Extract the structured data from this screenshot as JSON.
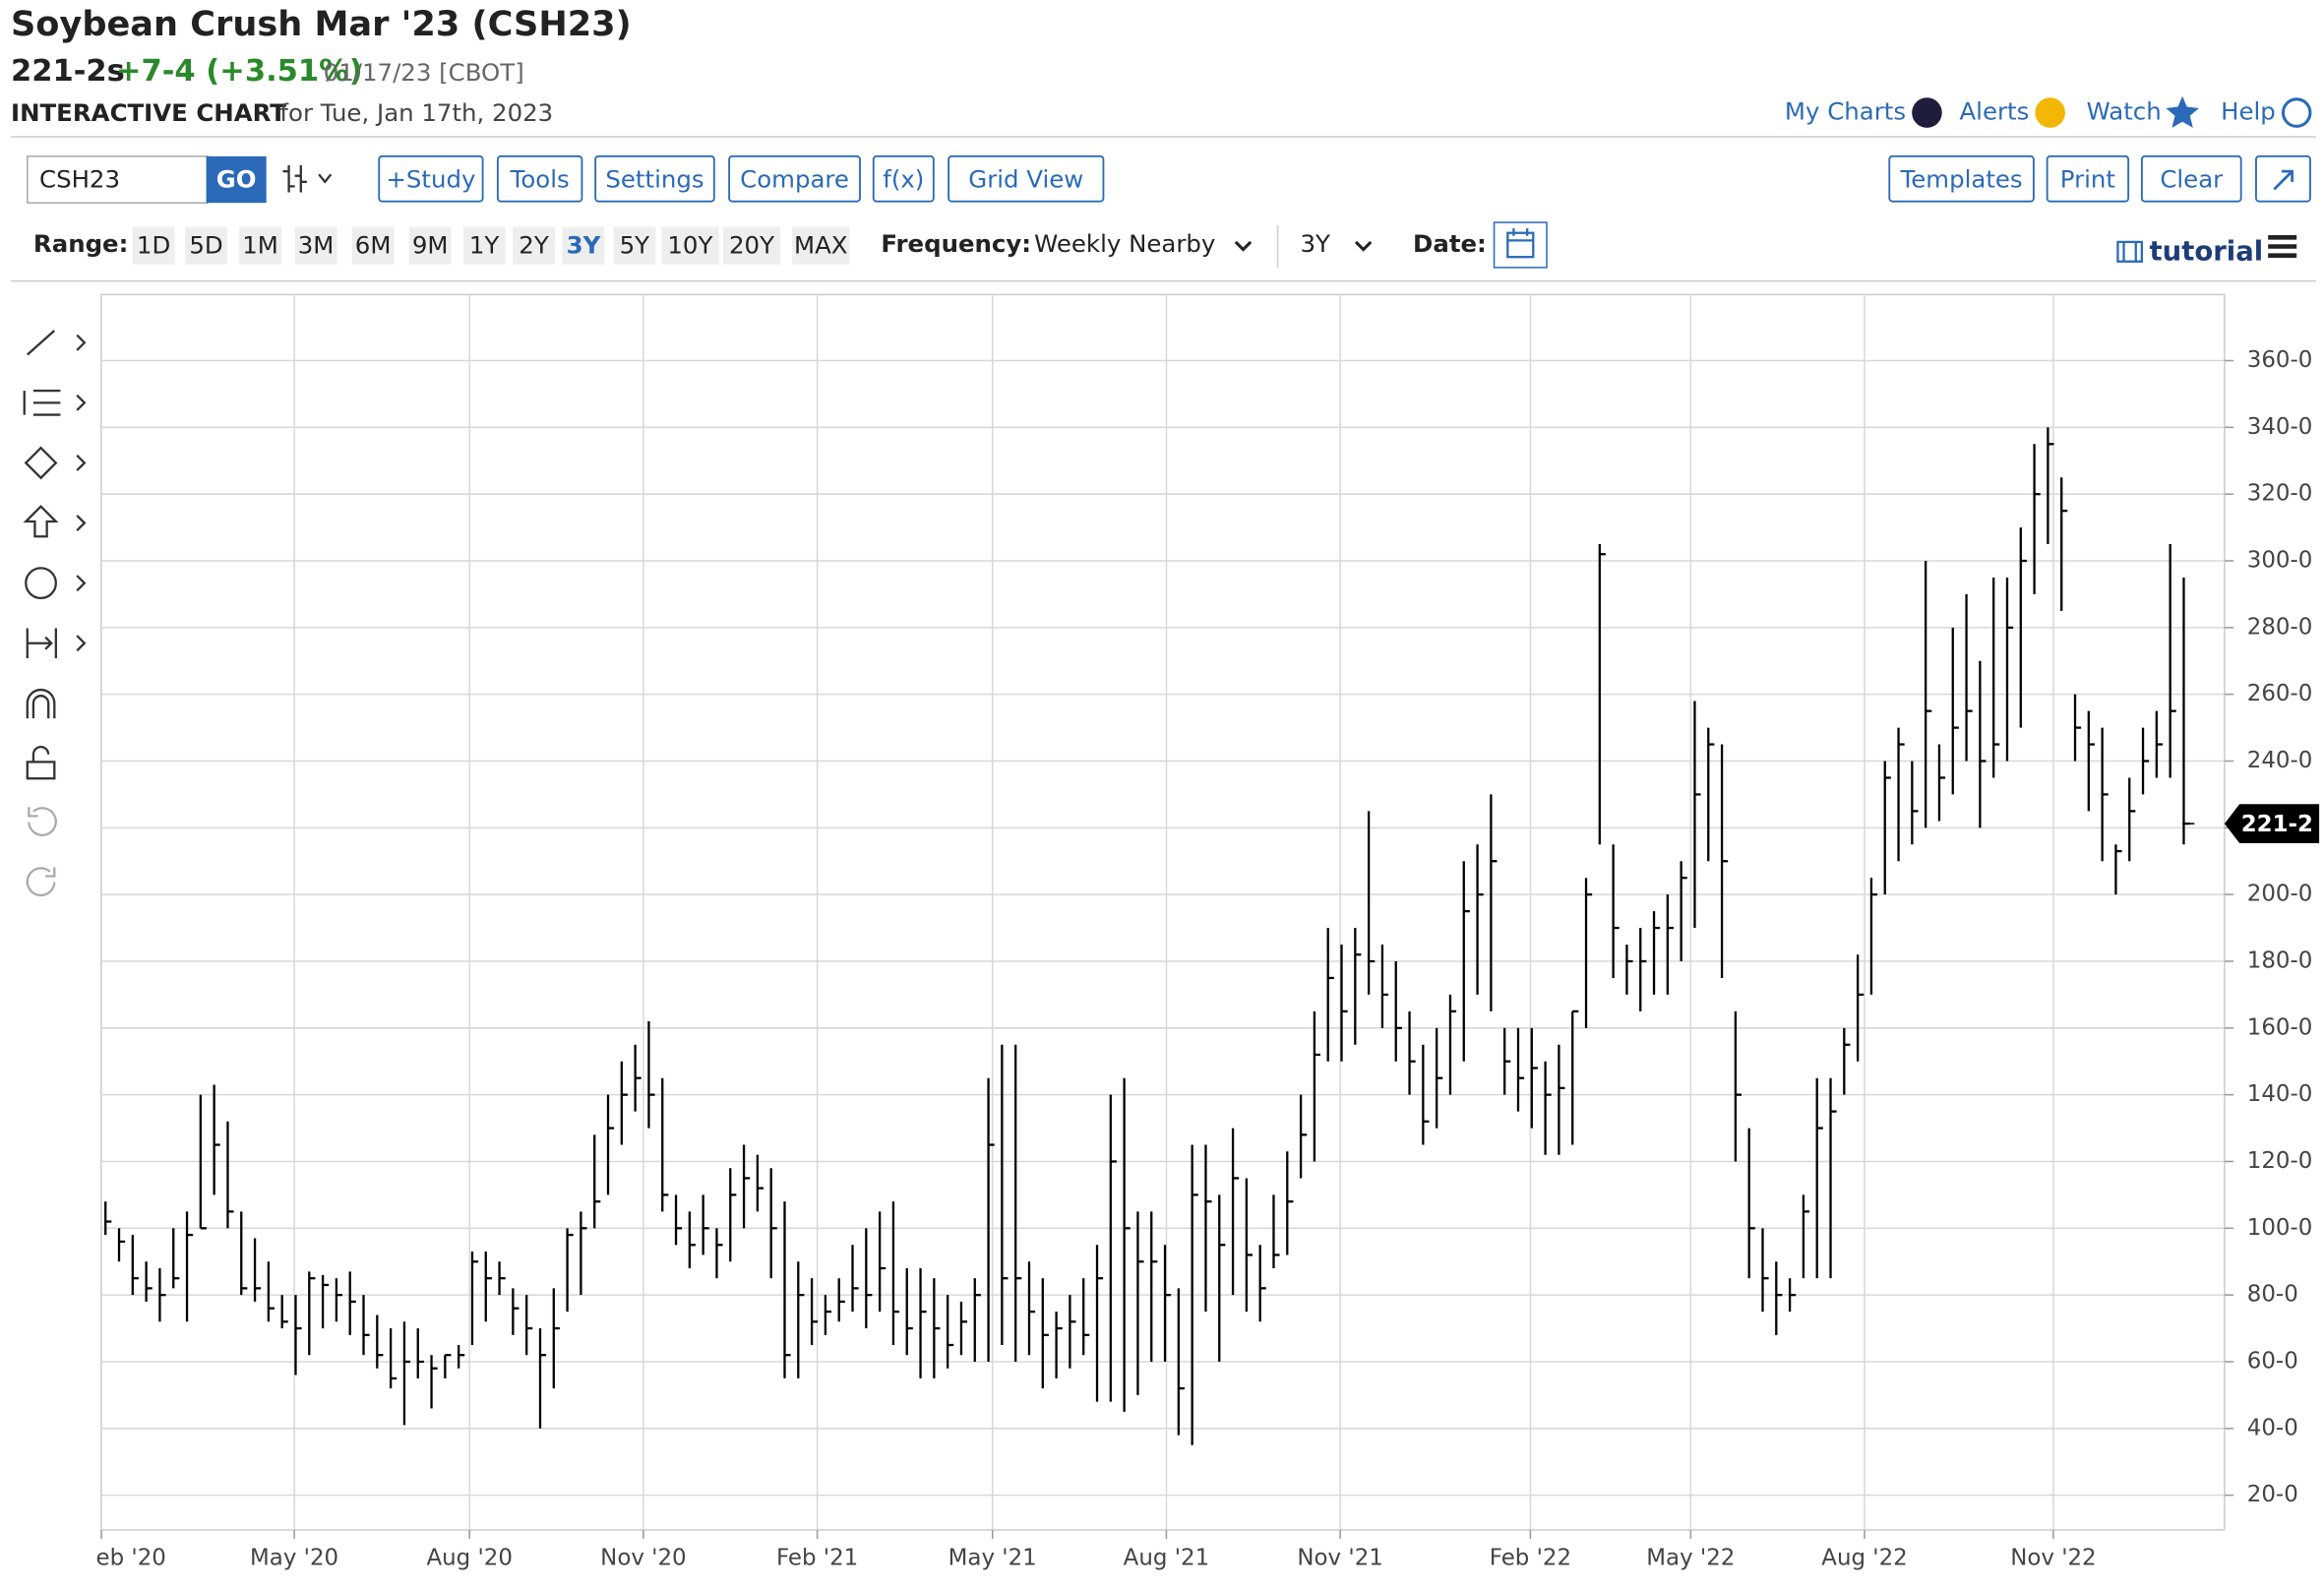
{
  "header": {
    "title": "Soybean Crush Mar '23 (CSH23)",
    "price": "221-2s",
    "change": "+7-4 (+3.51%)",
    "date": "01/17/23 [CBOT]",
    "chart_label": "INTERACTIVE CHART",
    "chart_date": "for Tue, Jan 17th, 2023"
  },
  "nav": [
    "My Charts",
    "Alerts",
    "Watch",
    "Help"
  ],
  "toolbar": {
    "symbol": "CSH23",
    "go": "GO",
    "buttons": [
      "+Study",
      "Tools",
      "Settings",
      "Compare",
      "f(x)",
      "Grid View"
    ],
    "right_buttons": [
      "Templates",
      "Print",
      "Clear"
    ]
  },
  "range": {
    "label": "Range:",
    "options": [
      "1D",
      "5D",
      "1M",
      "3M",
      "6M",
      "9M",
      "1Y",
      "2Y",
      "3Y",
      "5Y",
      "10Y",
      "20Y",
      "MAX"
    ],
    "selected": 8,
    "frequency_label": "Frequency:",
    "frequency": "Weekly Nearby",
    "period": "3Y",
    "date_label": "Date:",
    "tutorial": "tutorial"
  },
  "chart_data": {
    "type": "hlc",
    "color": "#000000",
    "high": [
      108,
      100,
      98,
      90,
      88,
      100,
      105,
      140,
      143,
      132,
      105,
      97,
      90,
      80,
      80,
      87,
      86,
      85,
      87,
      80,
      74,
      70,
      72,
      70,
      62,
      62,
      65,
      93,
      93,
      90,
      82,
      80,
      70,
      82,
      100,
      105,
      128,
      140,
      150,
      155,
      162,
      145,
      110,
      105,
      110,
      100,
      118,
      125,
      122,
      118,
      108,
      90,
      85,
      80,
      85,
      95,
      100,
      105,
      108,
      88,
      88,
      85,
      80,
      78,
      85,
      145,
      155,
      155,
      90,
      85,
      75,
      80,
      85,
      95,
      140,
      145,
      105,
      105,
      95,
      82,
      125,
      125,
      110,
      130,
      115,
      95,
      110,
      123,
      140,
      165,
      190,
      185,
      190,
      225,
      185,
      180,
      165,
      155,
      160,
      170,
      210,
      215,
      230,
      160,
      160,
      160,
      150,
      155,
      165,
      205,
      305,
      215,
      185,
      190,
      195,
      200,
      210,
      258,
      250,
      245,
      165,
      130,
      100,
      90,
      85,
      110,
      145,
      145,
      160,
      182,
      205,
      240,
      250,
      240,
      300,
      245,
      280,
      290,
      270,
      295,
      295,
      310,
      335,
      340,
      325,
      260,
      255,
      250,
      215,
      235,
      250,
      255,
      305,
      295
    ],
    "low": [
      98,
      90,
      80,
      78,
      72,
      82,
      72,
      100,
      110,
      100,
      80,
      78,
      72,
      70,
      56,
      62,
      70,
      72,
      68,
      62,
      58,
      52,
      41,
      55,
      46,
      55,
      58,
      65,
      72,
      80,
      68,
      62,
      40,
      52,
      75,
      80,
      100,
      110,
      125,
      135,
      130,
      105,
      95,
      88,
      92,
      85,
      90,
      100,
      105,
      85,
      55,
      55,
      65,
      68,
      72,
      75,
      70,
      75,
      65,
      62,
      55,
      55,
      58,
      62,
      60,
      60,
      65,
      60,
      62,
      52,
      55,
      58,
      62,
      48,
      48,
      45,
      50,
      60,
      60,
      38,
      35,
      75,
      60,
      80,
      75,
      72,
      88,
      92,
      115,
      120,
      150,
      150,
      155,
      170,
      160,
      150,
      140,
      125,
      130,
      140,
      150,
      170,
      165,
      140,
      135,
      130,
      122,
      122,
      125,
      160,
      215,
      175,
      170,
      165,
      170,
      170,
      180,
      190,
      210,
      175,
      120,
      85,
      75,
      68,
      75,
      85,
      85,
      85,
      140,
      150,
      170,
      200,
      210,
      215,
      220,
      222,
      230,
      240,
      220,
      235,
      240,
      250,
      290,
      305,
      285,
      240,
      225,
      210,
      200,
      210,
      230,
      235,
      235,
      215
    ],
    "close": [
      102,
      96,
      85,
      82,
      80,
      85,
      98,
      100,
      125,
      105,
      82,
      82,
      76,
      72,
      70,
      85,
      83,
      80,
      78,
      68,
      62,
      55,
      60,
      60,
      58,
      62,
      62,
      90,
      85,
      85,
      76,
      70,
      62,
      70,
      98,
      100,
      108,
      130,
      140,
      145,
      140,
      110,
      100,
      95,
      100,
      95,
      110,
      115,
      112,
      100,
      62,
      80,
      72,
      75,
      78,
      82,
      80,
      88,
      75,
      70,
      75,
      70,
      65,
      72,
      80,
      125,
      85,
      85,
      75,
      68,
      70,
      72,
      68,
      85,
      120,
      100,
      90,
      90,
      80,
      52,
      110,
      108,
      95,
      115,
      92,
      82,
      92,
      108,
      128,
      152,
      175,
      165,
      182,
      180,
      170,
      160,
      150,
      132,
      145,
      165,
      195,
      200,
      210,
      150,
      145,
      148,
      140,
      142,
      165,
      200,
      302,
      190,
      180,
      180,
      190,
      190,
      205,
      230,
      245,
      210,
      140,
      100,
      85,
      80,
      80,
      105,
      130,
      135,
      155,
      170,
      200,
      235,
      245,
      225,
      255,
      235,
      250,
      255,
      240,
      245,
      280,
      300,
      320,
      335,
      315,
      250,
      245,
      230,
      213,
      225,
      240,
      245,
      255,
      221.25
    ],
    "xlim": [
      -0.33,
      156.0
    ],
    "ylim": [
      9.6,
      379.8
    ],
    "xticks": [
      {
        "value": -0.3,
        "label": "eb '20"
      },
      {
        "value": 13.9,
        "label": "May '20"
      },
      {
        "value": 26.8,
        "label": "Aug '20"
      },
      {
        "value": 39.6,
        "label": "Nov '20"
      },
      {
        "value": 52.4,
        "label": "Feb '21"
      },
      {
        "value": 65.3,
        "label": "May '21"
      },
      {
        "value": 78.1,
        "label": "Aug '21"
      },
      {
        "value": 90.9,
        "label": "Nov '21"
      },
      {
        "value": 104.9,
        "label": "Feb '22"
      },
      {
        "value": 116.7,
        "label": "May '22"
      },
      {
        "value": 129.5,
        "label": "Aug '22"
      },
      {
        "value": 143.4,
        "label": "Nov '22"
      }
    ],
    "yticks": [
      {
        "value": 20,
        "label": "20-0"
      },
      {
        "value": 40,
        "label": "40-0"
      },
      {
        "value": 60,
        "label": "60-0"
      },
      {
        "value": 80,
        "label": "80-0"
      },
      {
        "value": 100,
        "label": "100-0"
      },
      {
        "value": 120,
        "label": "120-0"
      },
      {
        "value": 140,
        "label": "140-0"
      },
      {
        "value": 160,
        "label": "160-0"
      },
      {
        "value": 180,
        "label": "180-0"
      },
      {
        "value": 200,
        "label": "200-0"
      },
      {
        "value": 220,
        "label": "220-0"
      },
      {
        "value": 240,
        "label": "240-0"
      },
      {
        "value": 260,
        "label": "260-0"
      },
      {
        "value": 280,
        "label": "280-0"
      },
      {
        "value": 300,
        "label": "300-0"
      },
      {
        "value": 320,
        "label": "320-0"
      },
      {
        "value": 340,
        "label": "340-0"
      },
      {
        "value": 360,
        "label": "360-0"
      }
    ],
    "last": {
      "value": 221.25,
      "label": "221-2"
    },
    "grid": true
  }
}
